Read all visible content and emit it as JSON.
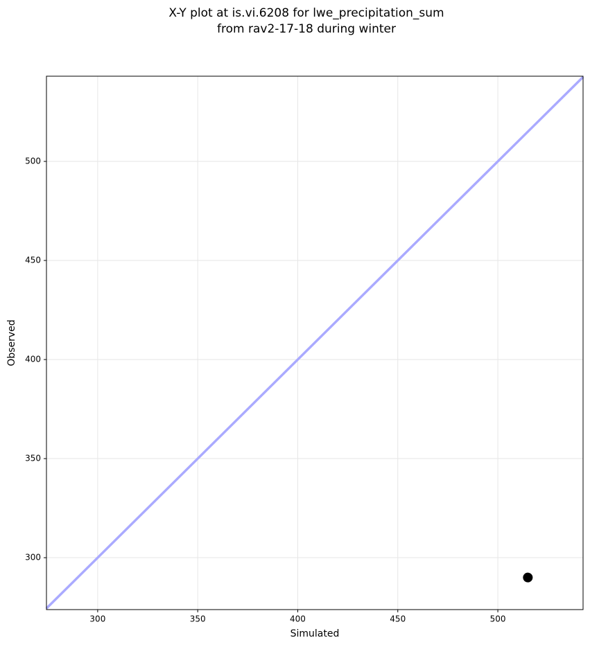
{
  "chart_data": {
    "type": "scatter",
    "title": [
      "X-Y plot at is.vi.6208 for lwe_precipitation_sum",
      "from rav2-17-18 during winter"
    ],
    "x_label": "Simulated",
    "y_label": "Observed",
    "x": [
      515
    ],
    "values": [
      290
    ],
    "color": "#000000",
    "xlim": [
      274.4,
      542.6
    ],
    "ylim": [
      273.8,
      543
    ],
    "xticks": [
      300,
      350,
      400,
      450,
      500
    ],
    "yticks": [
      300,
      350,
      400,
      450,
      500
    ],
    "grid": true
  }
}
